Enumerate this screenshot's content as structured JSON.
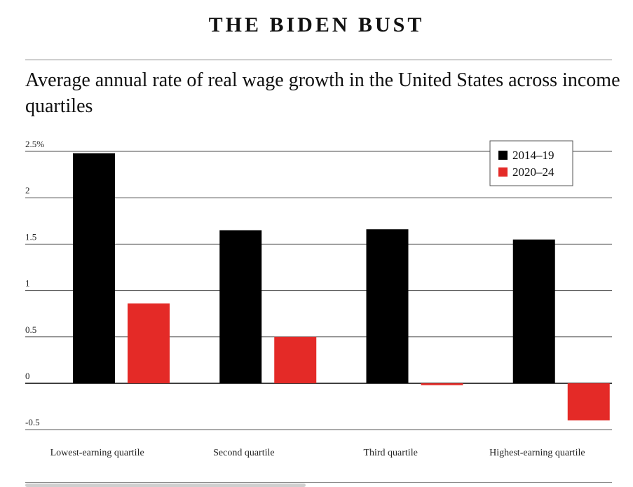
{
  "headline": "THE BIDEN BUST",
  "chart_data": {
    "type": "bar",
    "title": "Average annual rate of real wage growth in the United States across income quartiles",
    "categories": [
      "Lowest-earning quartile",
      "Second quartile",
      "Third quartile",
      "Highest-earning quartile"
    ],
    "series": [
      {
        "name": "2014–19",
        "color": "#000000",
        "values": [
          2.48,
          1.65,
          1.66,
          1.55
        ]
      },
      {
        "name": "2020–24",
        "color": "#e42a27",
        "values": [
          0.86,
          0.5,
          -0.02,
          -0.4
        ]
      }
    ],
    "yticks": [
      {
        "value": 2.5,
        "label": "2.5%"
      },
      {
        "value": 2,
        "label": "2"
      },
      {
        "value": 1.5,
        "label": "1.5"
      },
      {
        "value": 1,
        "label": "1"
      },
      {
        "value": 0.5,
        "label": "0.5"
      },
      {
        "value": 0,
        "label": "0"
      },
      {
        "value": -0.5,
        "label": "-0.5"
      }
    ],
    "ylim": [
      -0.5,
      2.5
    ],
    "grid": true,
    "legend_position": "top-right"
  }
}
